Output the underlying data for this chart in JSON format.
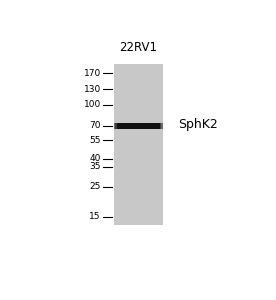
{
  "title": "22RV1",
  "protein_label": "SphK2",
  "gel_bg_color": "#c8c8c8",
  "outer_background": "#ffffff",
  "mw_markers": [
    170,
    130,
    100,
    70,
    55,
    40,
    35,
    25,
    15
  ],
  "band_color": "#111111",
  "band_at_kda": 70,
  "title_fontsize": 8.5,
  "marker_fontsize": 6.5,
  "label_fontsize": 9
}
